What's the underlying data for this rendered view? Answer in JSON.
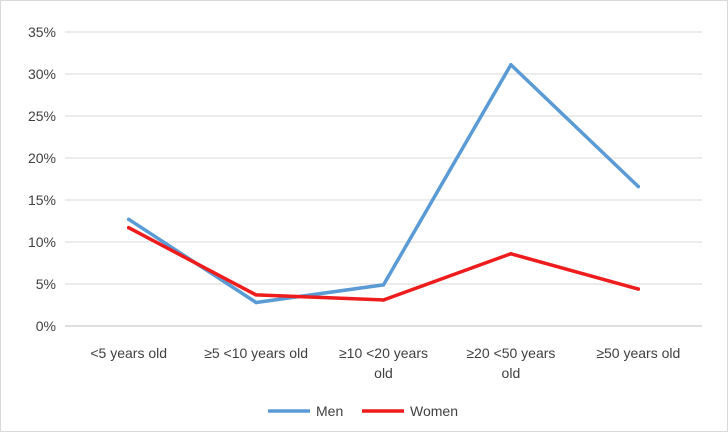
{
  "chart_data": {
    "type": "line",
    "title": "",
    "xlabel": "",
    "ylabel": "",
    "categories": [
      [
        "<5 years old"
      ],
      [
        "≥5  <10 years old"
      ],
      [
        "≥10 <20 years",
        "old"
      ],
      [
        "≥20 <50 years",
        "old"
      ],
      [
        "≥50 years old"
      ]
    ],
    "ylim": [
      0,
      35
    ],
    "yticks": [
      "0%",
      "5%",
      "10%",
      "15%",
      "20%",
      "25%",
      "30%",
      "35%"
    ],
    "ytick_values": [
      0,
      5,
      10,
      15,
      20,
      25,
      30,
      35
    ],
    "grid": true,
    "legend_position": "bottom",
    "series": [
      {
        "name": "Men",
        "color": "#5B9BD5",
        "values": [
          12.7,
          2.8,
          4.9,
          31.1,
          16.6
        ]
      },
      {
        "name": "Women",
        "color": "#EE1C1C",
        "values": [
          11.7,
          3.7,
          3.1,
          8.6,
          4.4
        ]
      }
    ]
  }
}
